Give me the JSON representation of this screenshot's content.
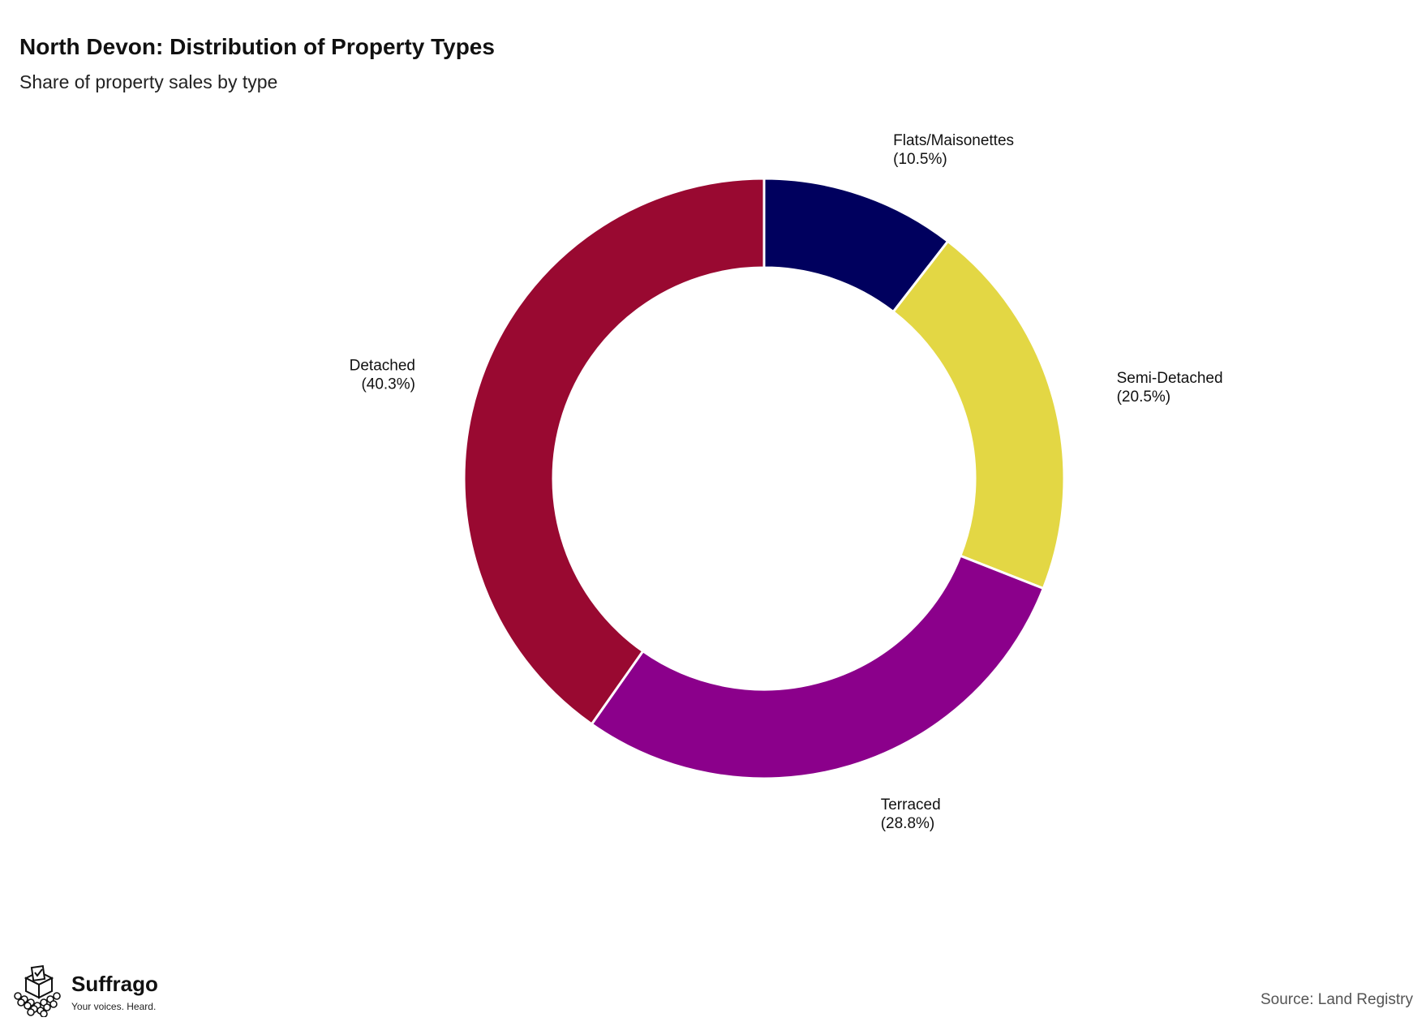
{
  "header": {
    "title": "North Devon: Distribution of Property Types",
    "subtitle": "Share of property sales by type"
  },
  "chart_data": {
    "type": "pie",
    "title": "North Devon: Distribution of Property Types",
    "subtitle": "Share of property sales by type",
    "donut": true,
    "categories": [
      "Flats/Maisonettes",
      "Semi-Detached",
      "Terraced",
      "Detached"
    ],
    "values": [
      10.5,
      20.5,
      28.8,
      40.3
    ],
    "labels": [
      "(10.5%)",
      "(20.5%)",
      "(28.8%)",
      "(40.3%)"
    ],
    "colors": [
      "#00005e",
      "#e3d744",
      "#8b008b",
      "#990931"
    ],
    "start_angle": "12 o'clock",
    "direction": "clockwise",
    "legend": "none"
  },
  "branding": {
    "logo_name": "Suffrago",
    "logo_tagline": "Your voices. Heard.",
    "icon": "ballot-box-icon"
  },
  "footer": {
    "source": "Source: Land Registry"
  }
}
